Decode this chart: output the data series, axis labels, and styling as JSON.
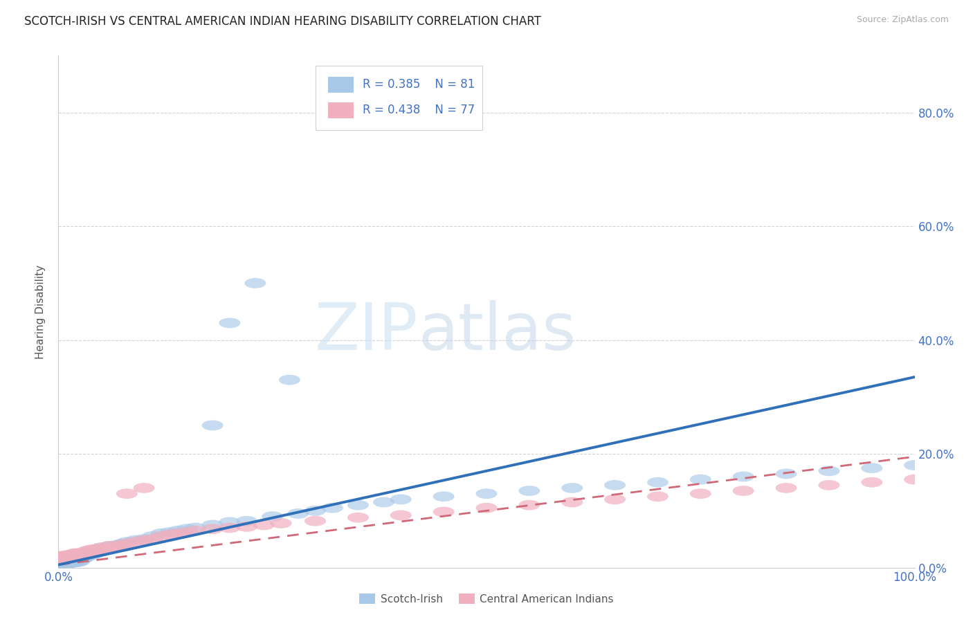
{
  "title": "SCOTCH-IRISH VS CENTRAL AMERICAN INDIAN HEARING DISABILITY CORRELATION CHART",
  "source": "Source: ZipAtlas.com",
  "ylabel": "Hearing Disability",
  "background_color": "#ffffff",
  "grid_color": "#c8c8c8",
  "title_fontsize": 12,
  "scotch_irish": {
    "R": 0.385,
    "N": 81,
    "color": "#a8c8e8",
    "edge_color": "#a8c8e8",
    "line_color": "#3070b8",
    "label": "Scotch-Irish",
    "slope": 0.33,
    "intercept": 0.005,
    "x": [
      0.001,
      0.002,
      0.002,
      0.003,
      0.003,
      0.004,
      0.004,
      0.005,
      0.005,
      0.006,
      0.006,
      0.007,
      0.008,
      0.009,
      0.01,
      0.011,
      0.012,
      0.013,
      0.014,
      0.015,
      0.016,
      0.017,
      0.018,
      0.019,
      0.02,
      0.021,
      0.022,
      0.023,
      0.024,
      0.025,
      0.026,
      0.028,
      0.03,
      0.032,
      0.035,
      0.038,
      0.04,
      0.043,
      0.045,
      0.048,
      0.05,
      0.055,
      0.06,
      0.065,
      0.07,
      0.075,
      0.08,
      0.09,
      0.1,
      0.11,
      0.12,
      0.13,
      0.14,
      0.15,
      0.16,
      0.18,
      0.2,
      0.22,
      0.25,
      0.28,
      0.3,
      0.32,
      0.35,
      0.38,
      0.4,
      0.45,
      0.5,
      0.55,
      0.6,
      0.65,
      0.7,
      0.75,
      0.8,
      0.85,
      0.9,
      0.95,
      1.0,
      0.2,
      0.23,
      0.27,
      0.18
    ],
    "y": [
      0.005,
      0.005,
      0.008,
      0.005,
      0.01,
      0.005,
      0.008,
      0.005,
      0.01,
      0.005,
      0.008,
      0.01,
      0.005,
      0.008,
      0.01,
      0.012,
      0.008,
      0.01,
      0.008,
      0.012,
      0.01,
      0.012,
      0.01,
      0.015,
      0.01,
      0.012,
      0.015,
      0.01,
      0.015,
      0.012,
      0.018,
      0.015,
      0.018,
      0.02,
      0.025,
      0.022,
      0.03,
      0.025,
      0.03,
      0.028,
      0.035,
      0.032,
      0.038,
      0.035,
      0.04,
      0.042,
      0.045,
      0.048,
      0.05,
      0.055,
      0.06,
      0.062,
      0.065,
      0.068,
      0.07,
      0.075,
      0.08,
      0.082,
      0.09,
      0.095,
      0.1,
      0.105,
      0.11,
      0.115,
      0.12,
      0.125,
      0.13,
      0.135,
      0.14,
      0.145,
      0.15,
      0.155,
      0.16,
      0.165,
      0.17,
      0.175,
      0.18,
      0.43,
      0.5,
      0.33,
      0.25
    ]
  },
  "central_american": {
    "R": 0.438,
    "N": 77,
    "color": "#f0b0c0",
    "edge_color": "#f0b0c0",
    "line_color": "#d06878",
    "label": "Central American Indians",
    "slope": 0.19,
    "intercept": 0.005,
    "x": [
      0.001,
      0.002,
      0.002,
      0.003,
      0.003,
      0.004,
      0.004,
      0.005,
      0.005,
      0.006,
      0.006,
      0.007,
      0.008,
      0.009,
      0.01,
      0.011,
      0.012,
      0.013,
      0.014,
      0.015,
      0.016,
      0.017,
      0.018,
      0.019,
      0.02,
      0.021,
      0.022,
      0.023,
      0.024,
      0.025,
      0.026,
      0.028,
      0.03,
      0.032,
      0.035,
      0.038,
      0.04,
      0.043,
      0.045,
      0.048,
      0.05,
      0.055,
      0.06,
      0.065,
      0.07,
      0.075,
      0.08,
      0.09,
      0.1,
      0.11,
      0.12,
      0.13,
      0.14,
      0.15,
      0.16,
      0.18,
      0.2,
      0.22,
      0.24,
      0.26,
      0.3,
      0.35,
      0.4,
      0.45,
      0.5,
      0.55,
      0.6,
      0.65,
      0.7,
      0.75,
      0.8,
      0.85,
      0.9,
      0.95,
      1.0,
      0.1,
      0.08
    ],
    "y": [
      0.02,
      0.018,
      0.015,
      0.018,
      0.02,
      0.015,
      0.018,
      0.015,
      0.02,
      0.015,
      0.018,
      0.02,
      0.015,
      0.018,
      0.02,
      0.022,
      0.018,
      0.02,
      0.018,
      0.022,
      0.02,
      0.022,
      0.02,
      0.025,
      0.02,
      0.022,
      0.025,
      0.02,
      0.025,
      0.022,
      0.025,
      0.022,
      0.025,
      0.028,
      0.03,
      0.028,
      0.032,
      0.03,
      0.032,
      0.03,
      0.035,
      0.032,
      0.038,
      0.035,
      0.038,
      0.04,
      0.042,
      0.045,
      0.048,
      0.05,
      0.055,
      0.058,
      0.06,
      0.062,
      0.065,
      0.068,
      0.07,
      0.072,
      0.075,
      0.078,
      0.082,
      0.088,
      0.092,
      0.098,
      0.105,
      0.11,
      0.115,
      0.12,
      0.125,
      0.13,
      0.135,
      0.14,
      0.145,
      0.15,
      0.155,
      0.14,
      0.13
    ]
  },
  "xlim": [
    0.0,
    1.0
  ],
  "ylim": [
    0.0,
    0.9
  ],
  "yticks": [
    0.0,
    0.2,
    0.4,
    0.6,
    0.8
  ],
  "ytick_labels": [
    "0.0%",
    "20.0%",
    "40.0%",
    "60.0%",
    "80.0%"
  ],
  "xtick_labels": [
    "0.0%",
    "100.0%"
  ],
  "watermark_zip": "ZIP",
  "watermark_atlas": "atlas",
  "legend_text_color": "#4472c4",
  "legend_pink_text_color": "#c05060"
}
